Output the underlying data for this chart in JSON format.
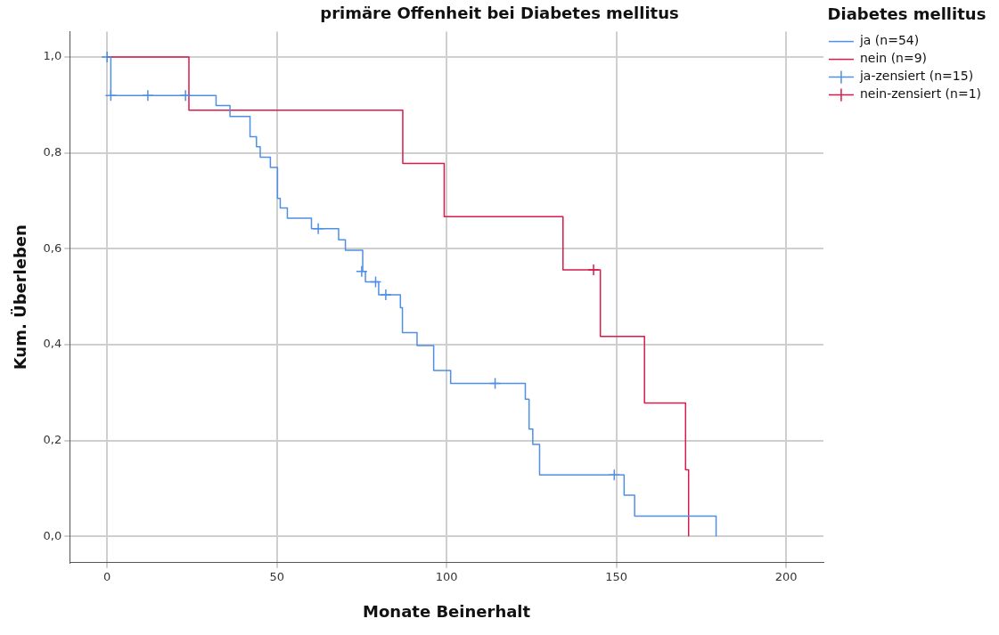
{
  "chart_data": {
    "type": "step",
    "title": "primäre Offenheit bei Diabetes mellitus",
    "xlabel": "Monate Beinerhalt",
    "ylabel": "Kum. Überleben",
    "legend_title": "Diabetes mellitus",
    "legend": "right",
    "grid": true,
    "xlim": [
      -11,
      211
    ],
    "xticks": [
      0,
      50,
      100,
      150,
      200
    ],
    "ylim": [
      -0.055,
      1.053
    ],
    "yticks": [
      {
        "value": 0,
        "label": "0,0"
      },
      {
        "value": 0.2,
        "label": "0,2"
      },
      {
        "value": 0.4,
        "label": "0,4"
      },
      {
        "value": 0.6,
        "label": "0,6"
      },
      {
        "value": 0.8,
        "label": "0,8"
      },
      {
        "value": 1,
        "label": "1,0"
      }
    ],
    "series": [
      {
        "name": "ja (n=54)",
        "color": "#4f8fe6",
        "marker": "none",
        "line_style": "solid",
        "x": [
          0,
          1.1,
          32.1,
          36.2,
          42.1,
          44,
          45.1,
          48.1,
          50.2,
          51,
          53.1,
          60.2,
          68.2,
          70.2,
          75.3,
          76.1,
          80,
          86.4,
          87,
          91.3,
          96.2,
          101.2,
          123.2,
          124.3,
          125.4,
          127.4,
          152.3,
          155.4,
          179.4
        ],
        "values": [
          1,
          0.92,
          0.899,
          0.876,
          0.834,
          0.813,
          0.791,
          0.77,
          0.705,
          0.685,
          0.664,
          0.642,
          0.619,
          0.597,
          0.553,
          0.531,
          0.504,
          0.477,
          0.425,
          0.398,
          0.346,
          0.319,
          0.286,
          0.224,
          0.192,
          0.128,
          0.086,
          0.042,
          0
        ]
      },
      {
        "name": "nein (n=9)",
        "color": "#d81b4a",
        "marker": "none",
        "line_style": "solid",
        "x": [
          0,
          24.1,
          87.1,
          99.3,
          134.3,
          145.3,
          158.3,
          170.4,
          171.3
        ],
        "values": [
          1,
          0.889,
          0.778,
          0.667,
          0.556,
          0.417,
          0.278,
          0.139,
          0
        ]
      },
      {
        "name": "ja-zensiert (n=15)",
        "type": "scatter",
        "color": "#4f8fe6",
        "marker": "cross",
        "x": [
          0,
          1.1,
          12,
          23.1,
          62.2,
          75,
          79.1,
          82.1,
          114.3,
          149.4
        ],
        "values": [
          1,
          0.92,
          0.92,
          0.92,
          0.642,
          0.553,
          0.531,
          0.504,
          0.319,
          0.128
        ]
      },
      {
        "name": "nein-zensiert (n=1)",
        "type": "scatter",
        "color": "#d81b4a",
        "marker": "cross",
        "x": [
          143.3
        ],
        "values": [
          0.556
        ]
      }
    ]
  }
}
